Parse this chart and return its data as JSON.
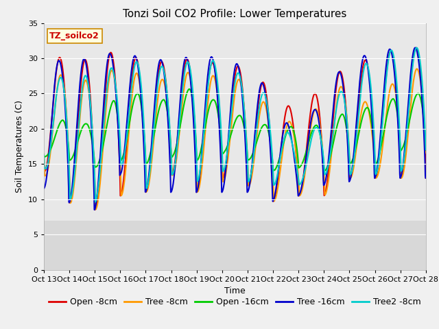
{
  "title": "Tonzi Soil CO2 Profile: Lower Temperatures",
  "xlabel": "Time",
  "ylabel": "Soil Temperatures (C)",
  "annotation": "TZ_soilco2",
  "ylim": [
    0,
    35
  ],
  "yticks": [
    0,
    5,
    10,
    15,
    20,
    25,
    30,
    35
  ],
  "x_tick_labels": [
    "Oct 13",
    "Oct 14",
    "Oct 15",
    "Oct 16",
    "Oct 17",
    "Oct 18",
    "Oct 19",
    "Oct 20",
    "Oct 21",
    "Oct 22",
    "Oct 23",
    "Oct 24",
    "Oct 25",
    "Oct 26",
    "Oct 27",
    "Oct 28"
  ],
  "series_colors": {
    "Open -8cm": "#dd0000",
    "Tree -8cm": "#ff9900",
    "Open -16cm": "#00cc00",
    "Tree -16cm": "#0000cc",
    "Tree2 -8cm": "#00cccc"
  },
  "series_order": [
    "Open -8cm",
    "Tree -8cm",
    "Open -16cm",
    "Tree -16cm",
    "Tree2 -8cm"
  ],
  "line_width": 1.5,
  "fig_bg_color": "#f0f0f0",
  "plot_bg_color": "#d8d8d8",
  "upper_bg_color": "#e8e8e8",
  "grid_color": "#ffffff",
  "title_fontsize": 11,
  "label_fontsize": 9,
  "tick_fontsize": 8,
  "legend_fontsize": 9
}
